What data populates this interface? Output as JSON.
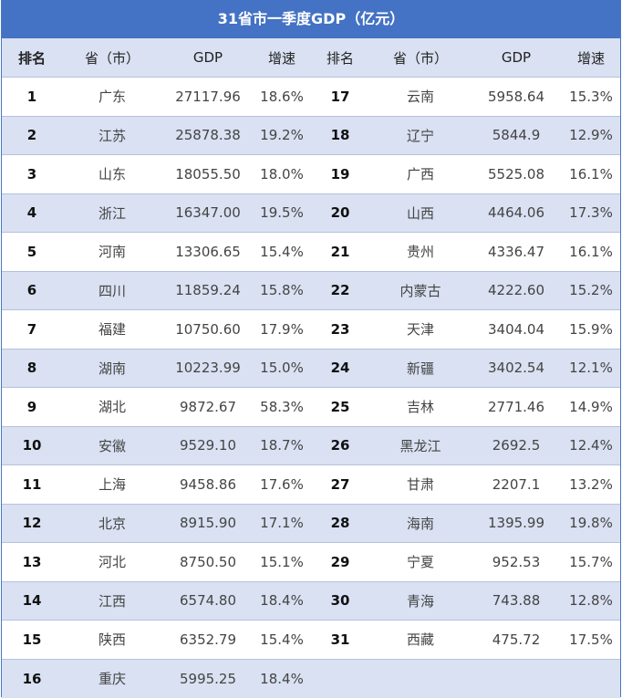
{
  "title": "31省市一季度GDP（亿元）",
  "headers": [
    "排名",
    "省（市）",
    "GDP",
    "增速",
    "排名",
    "省（市）",
    "GDP",
    "增速"
  ],
  "rows": [
    {
      "left": {
        "rank": "1",
        "province": "广东",
        "gdp": "27117.96",
        "growth": "18.6%"
      },
      "right": {
        "rank": "17",
        "province": "云南",
        "gdp": "5958.64",
        "growth": "15.3%"
      }
    },
    {
      "left": {
        "rank": "2",
        "province": "江苏",
        "gdp": "25878.38",
        "growth": "19.2%"
      },
      "right": {
        "rank": "18",
        "province": "辽宁",
        "gdp": "5844.9",
        "growth": "12.9%"
      }
    },
    {
      "left": {
        "rank": "3",
        "province": "山东",
        "gdp": "18055.50",
        "growth": "18.0%"
      },
      "right": {
        "rank": "19",
        "province": "广西",
        "gdp": "5525.08",
        "growth": "16.1%"
      }
    },
    {
      "left": {
        "rank": "4",
        "province": "浙江",
        "gdp": "16347.00",
        "growth": "19.5%"
      },
      "right": {
        "rank": "20",
        "province": "山西",
        "gdp": "4464.06",
        "growth": "17.3%"
      }
    },
    {
      "left": {
        "rank": "5",
        "province": "河南",
        "gdp": "13306.65",
        "growth": "15.4%"
      },
      "right": {
        "rank": "21",
        "province": "贵州",
        "gdp": "4336.47",
        "growth": "16.1%"
      }
    },
    {
      "left": {
        "rank": "6",
        "province": "四川",
        "gdp": "11859.24",
        "growth": "15.8%"
      },
      "right": {
        "rank": "22",
        "province": "内蒙古",
        "gdp": "4222.60",
        "growth": "15.2%"
      }
    },
    {
      "left": {
        "rank": "7",
        "province": "福建",
        "gdp": "10750.60",
        "growth": "17.9%"
      },
      "right": {
        "rank": "23",
        "province": "天津",
        "gdp": "3404.04",
        "growth": "15.9%"
      }
    },
    {
      "left": {
        "rank": "8",
        "province": "湖南",
        "gdp": "10223.99",
        "growth": "15.0%"
      },
      "right": {
        "rank": "24",
        "province": "新疆",
        "gdp": "3402.54",
        "growth": "12.1%"
      }
    },
    {
      "left": {
        "rank": "9",
        "province": "湖北",
        "gdp": "9872.67",
        "growth": "58.3%"
      },
      "right": {
        "rank": "25",
        "province": "吉林",
        "gdp": "2771.46",
        "growth": "14.9%"
      }
    },
    {
      "left": {
        "rank": "10",
        "province": "安徽",
        "gdp": "9529.10",
        "growth": "18.7%"
      },
      "right": {
        "rank": "26",
        "province": "黑龙江",
        "gdp": "2692.5",
        "growth": "12.4%"
      }
    },
    {
      "left": {
        "rank": "11",
        "province": "上海",
        "gdp": "9458.86",
        "growth": "17.6%"
      },
      "right": {
        "rank": "27",
        "province": "甘肃",
        "gdp": "2207.1",
        "growth": "13.2%"
      }
    },
    {
      "left": {
        "rank": "12",
        "province": "北京",
        "gdp": "8915.90",
        "growth": "17.1%"
      },
      "right": {
        "rank": "28",
        "province": "海南",
        "gdp": "1395.99",
        "growth": "19.8%"
      }
    },
    {
      "left": {
        "rank": "13",
        "province": "河北",
        "gdp": "8750.50",
        "growth": "15.1%"
      },
      "right": {
        "rank": "29",
        "province": "宁夏",
        "gdp": "952.53",
        "growth": "15.7%"
      }
    },
    {
      "left": {
        "rank": "14",
        "province": "江西",
        "gdp": "6574.80",
        "growth": "18.4%"
      },
      "right": {
        "rank": "30",
        "province": "青海",
        "gdp": "743.88",
        "growth": "12.8%"
      }
    },
    {
      "left": {
        "rank": "15",
        "province": "陕西",
        "gdp": "6352.79",
        "growth": "15.4%"
      },
      "right": {
        "rank": "31",
        "province": "西藏",
        "gdp": "475.72",
        "growth": "17.5%"
      }
    },
    {
      "left": {
        "rank": "16",
        "province": "重庆",
        "gdp": "5995.25",
        "growth": "18.4%"
      },
      "right": {
        "rank": "",
        "province": "",
        "gdp": "",
        "growth": ""
      }
    }
  ],
  "colors": {
    "header": "#4472c4",
    "band": "#d9e1f2"
  }
}
